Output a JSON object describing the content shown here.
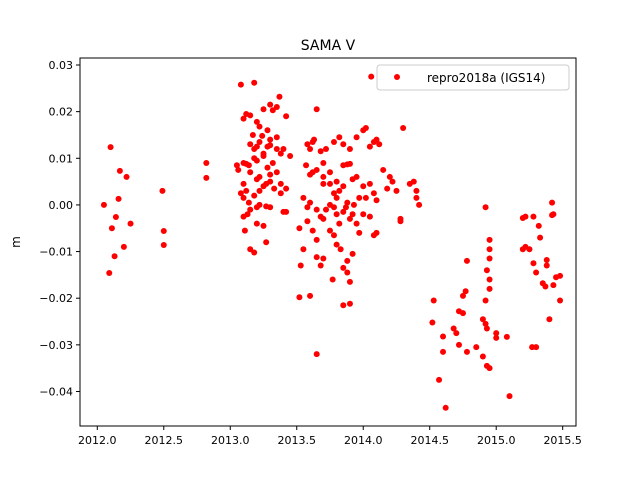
{
  "chart_data": {
    "type": "scatter",
    "title": "SAMA V",
    "xlabel": "",
    "ylabel": "m",
    "xlim": [
      2011.87,
      2015.6
    ],
    "ylim": [
      -0.0474,
      0.0315
    ],
    "xticks": [
      2012.0,
      2012.5,
      2013.0,
      2013.5,
      2014.0,
      2014.5,
      2015.0,
      2015.5
    ],
    "xtick_labels": [
      "2012.0",
      "2012.5",
      "2013.0",
      "2013.5",
      "2014.0",
      "2014.5",
      "2015.0",
      "2015.5"
    ],
    "yticks": [
      -0.04,
      -0.03,
      -0.02,
      -0.01,
      0.0,
      0.01,
      0.02,
      0.03
    ],
    "ytick_labels": [
      "−0.04",
      "−0.03",
      "−0.02",
      "−0.01",
      "0.00",
      "0.01",
      "0.02",
      "0.03"
    ],
    "grid": false,
    "legend_position": "top-right",
    "series": [
      {
        "name": "repro2018a (IGS14)",
        "color": "#ff0000",
        "points": [
          [
            2012.05,
            0.0
          ],
          [
            2012.1,
            0.0124
          ],
          [
            2012.17,
            0.0073
          ],
          [
            2012.22,
            0.006
          ],
          [
            2012.16,
            0.0013
          ],
          [
            2012.14,
            -0.0026
          ],
          [
            2012.11,
            -0.005
          ],
          [
            2012.25,
            -0.004
          ],
          [
            2012.2,
            -0.009
          ],
          [
            2012.13,
            -0.011
          ],
          [
            2012.09,
            -0.0146
          ],
          [
            2012.49,
            0.003
          ],
          [
            2012.5,
            -0.0056
          ],
          [
            2012.5,
            -0.0086
          ],
          [
            2012.82,
            0.009
          ],
          [
            2012.82,
            0.0058
          ],
          [
            2013.08,
            0.0258
          ],
          [
            2013.18,
            0.0262
          ],
          [
            2013.1,
            0.0185
          ],
          [
            2013.12,
            0.0195
          ],
          [
            2013.15,
            0.0192
          ],
          [
            2013.2,
            0.0178
          ],
          [
            2013.22,
            0.0168
          ],
          [
            2013.25,
            0.0205
          ],
          [
            2013.3,
            0.0215
          ],
          [
            2013.32,
            0.0203
          ],
          [
            2013.37,
            0.0232
          ],
          [
            2013.35,
            0.021
          ],
          [
            2013.42,
            0.019
          ],
          [
            2013.28,
            0.016
          ],
          [
            2013.3,
            0.014
          ],
          [
            2013.15,
            0.013
          ],
          [
            2013.18,
            0.012
          ],
          [
            2013.2,
            0.0125
          ],
          [
            2013.22,
            0.0135
          ],
          [
            2013.25,
            0.0105
          ],
          [
            2013.18,
            0.01
          ],
          [
            2013.2,
            0.0095
          ],
          [
            2013.1,
            0.009
          ],
          [
            2013.12,
            0.0088
          ],
          [
            2013.14,
            0.0085
          ],
          [
            2013.25,
            0.011
          ],
          [
            2013.28,
            0.0125
          ],
          [
            2013.3,
            0.0128
          ],
          [
            2013.35,
            0.012
          ],
          [
            2013.38,
            0.011
          ],
          [
            2013.4,
            0.012
          ],
          [
            2013.32,
            0.009
          ],
          [
            2013.28,
            0.008
          ],
          [
            2013.3,
            0.0065
          ],
          [
            2013.22,
            0.006
          ],
          [
            2013.2,
            0.0055
          ],
          [
            2013.15,
            0.007
          ],
          [
            2013.1,
            0.0045
          ],
          [
            2013.12,
            0.003
          ],
          [
            2013.1,
            0.0015
          ],
          [
            2013.14,
            0.0005
          ],
          [
            2013.15,
            -0.001
          ],
          [
            2013.13,
            -0.002
          ],
          [
            2013.18,
            0.002
          ],
          [
            2013.22,
            0.003
          ],
          [
            2013.25,
            0.004
          ],
          [
            2013.27,
            0.0045
          ],
          [
            2013.3,
            0.005
          ],
          [
            2013.33,
            0.0035
          ],
          [
            2013.35,
            0.007
          ],
          [
            2013.38,
            0.0025
          ],
          [
            2013.4,
            -0.0015
          ],
          [
            2013.42,
            -0.0015
          ],
          [
            2013.2,
            -0.0005
          ],
          [
            2013.22,
            0.0
          ],
          [
            2013.27,
            -0.0003
          ],
          [
            2013.1,
            -0.0025
          ],
          [
            2013.11,
            -0.0055
          ],
          [
            2013.15,
            -0.0095
          ],
          [
            2013.18,
            -0.0102
          ],
          [
            2013.2,
            -0.004
          ],
          [
            2013.27,
            -0.008
          ],
          [
            2013.25,
            -0.0045
          ],
          [
            2013.3,
            -0.0005
          ],
          [
            2013.05,
            0.0085
          ],
          [
            2013.08,
            0.0025
          ],
          [
            2013.06,
            0.0075
          ],
          [
            2013.38,
            0.0045
          ],
          [
            2013.42,
            0.0035
          ],
          [
            2013.45,
            0.0105
          ],
          [
            2013.17,
            0.015
          ],
          [
            2013.24,
            0.0148
          ],
          [
            2013.35,
            0.0145
          ],
          [
            2013.65,
            0.0205
          ],
          [
            2013.58,
            0.013
          ],
          [
            2013.6,
            0.012
          ],
          [
            2013.63,
            0.014
          ],
          [
            2013.62,
            0.0135
          ],
          [
            2013.68,
            0.0115
          ],
          [
            2013.7,
            0.009
          ],
          [
            2013.72,
            0.012
          ],
          [
            2013.78,
            0.0135
          ],
          [
            2013.82,
            0.0145
          ],
          [
            2013.85,
            0.013
          ],
          [
            2013.9,
            0.012
          ],
          [
            2013.95,
            0.0145
          ],
          [
            2014.0,
            0.016
          ],
          [
            2014.02,
            0.0165
          ],
          [
            2014.05,
            0.0125
          ],
          [
            2014.08,
            0.0135
          ],
          [
            2014.1,
            0.014
          ],
          [
            2014.12,
            0.013
          ],
          [
            2013.57,
            0.0085
          ],
          [
            2013.6,
            0.0065
          ],
          [
            2013.62,
            0.007
          ],
          [
            2013.65,
            0.0075
          ],
          [
            2013.7,
            0.006
          ],
          [
            2013.75,
            0.0045
          ],
          [
            2013.78,
            0.0025
          ],
          [
            2013.8,
            0.005
          ],
          [
            2013.82,
            0.003
          ],
          [
            2013.85,
            0.0085
          ],
          [
            2013.88,
            0.0087
          ],
          [
            2013.9,
            0.0088
          ],
          [
            2013.92,
            0.0055
          ],
          [
            2013.95,
            0.006
          ],
          [
            2014.0,
            0.004
          ],
          [
            2014.05,
            0.0045
          ],
          [
            2014.08,
            0.0025
          ],
          [
            2014.1,
            0.001
          ],
          [
            2014.15,
            0.0075
          ],
          [
            2014.18,
            0.0035
          ],
          [
            2014.2,
            0.006
          ],
          [
            2014.22,
            0.005
          ],
          [
            2014.25,
            0.003
          ],
          [
            2014.3,
            0.0165
          ],
          [
            2014.35,
            0.0045
          ],
          [
            2014.38,
            0.005
          ],
          [
            2014.4,
            0.0015
          ],
          [
            2014.42,
            0.0
          ],
          [
            2014.4,
            0.003
          ],
          [
            2014.28,
            -0.003
          ],
          [
            2014.28,
            -0.0035
          ],
          [
            2013.55,
            0.0015
          ],
          [
            2013.58,
            -0.0005
          ],
          [
            2013.6,
            0.0005
          ],
          [
            2013.65,
            -0.001
          ],
          [
            2013.68,
            -0.0025
          ],
          [
            2013.7,
            -0.003
          ],
          [
            2013.72,
            -0.001
          ],
          [
            2013.75,
            0.0
          ],
          [
            2013.78,
            -0.0005
          ],
          [
            2013.8,
            -0.002
          ],
          [
            2013.82,
            -0.004
          ],
          [
            2013.85,
            -0.0015
          ],
          [
            2013.87,
            -0.0005
          ],
          [
            2013.9,
            -0.003
          ],
          [
            2013.92,
            -0.002
          ],
          [
            2013.95,
            -0.004
          ],
          [
            2013.97,
            -0.006
          ],
          [
            2014.0,
            -0.002
          ],
          [
            2014.02,
            0.0015
          ],
          [
            2014.05,
            -0.0025
          ],
          [
            2014.08,
            -0.0065
          ],
          [
            2014.1,
            -0.006
          ],
          [
            2013.52,
            -0.005
          ],
          [
            2013.55,
            -0.0095
          ],
          [
            2013.53,
            -0.013
          ],
          [
            2013.52,
            -0.0198
          ],
          [
            2013.6,
            -0.0195
          ],
          [
            2013.65,
            -0.0112
          ],
          [
            2013.7,
            -0.0115
          ],
          [
            2013.68,
            -0.013
          ],
          [
            2013.65,
            -0.0075
          ],
          [
            2013.75,
            -0.0055
          ],
          [
            2013.78,
            -0.0065
          ],
          [
            2013.8,
            -0.0085
          ],
          [
            2013.83,
            -0.0095
          ],
          [
            2013.85,
            -0.0135
          ],
          [
            2013.88,
            -0.0145
          ],
          [
            2013.9,
            -0.0165
          ],
          [
            2013.92,
            -0.0105
          ],
          [
            2013.88,
            -0.012
          ],
          [
            2013.85,
            -0.0215
          ],
          [
            2013.9,
            -0.0212
          ],
          [
            2013.77,
            -0.016
          ],
          [
            2013.65,
            -0.032
          ],
          [
            2013.62,
            -0.0055
          ],
          [
            2013.58,
            -0.0035
          ],
          [
            2013.88,
            0.0005
          ],
          [
            2013.93,
            0.0
          ],
          [
            2013.97,
            0.0015
          ],
          [
            2013.8,
            0.0015
          ],
          [
            2013.7,
            0.0045
          ],
          [
            2013.85,
            0.004
          ],
          [
            2013.75,
            0.007
          ],
          [
            2014.06,
            0.0275
          ],
          [
            2014.52,
            -0.0252
          ],
          [
            2014.53,
            -0.0205
          ],
          [
            2014.57,
            -0.0375
          ],
          [
            2014.6,
            -0.0282
          ],
          [
            2014.6,
            -0.0315
          ],
          [
            2014.62,
            -0.0435
          ],
          [
            2014.68,
            -0.0265
          ],
          [
            2014.7,
            -0.0275
          ],
          [
            2014.72,
            -0.0228
          ],
          [
            2014.75,
            -0.0232
          ],
          [
            2014.72,
            -0.03
          ],
          [
            2014.75,
            -0.0195
          ],
          [
            2014.77,
            -0.0185
          ],
          [
            2014.78,
            -0.012
          ],
          [
            2014.78,
            -0.0315
          ],
          [
            2014.85,
            -0.0305
          ],
          [
            2014.9,
            -0.0325
          ],
          [
            2014.9,
            -0.0245
          ],
          [
            2014.92,
            -0.0255
          ],
          [
            2014.93,
            -0.0265
          ],
          [
            2014.92,
            -0.0205
          ],
          [
            2014.93,
            -0.0345
          ],
          [
            2014.95,
            -0.035
          ],
          [
            2014.92,
            -0.0005
          ],
          [
            2014.95,
            -0.0075
          ],
          [
            2014.95,
            -0.0095
          ],
          [
            2014.95,
            -0.0115
          ],
          [
            2014.93,
            -0.014
          ],
          [
            2014.95,
            -0.016
          ],
          [
            2014.95,
            -0.018
          ],
          [
            2015.0,
            -0.0275
          ],
          [
            2015.0,
            -0.0285
          ],
          [
            2015.08,
            -0.0283
          ],
          [
            2015.1,
            -0.041
          ],
          [
            2015.2,
            -0.0095
          ],
          [
            2015.2,
            -0.0028
          ],
          [
            2015.22,
            -0.0025
          ],
          [
            2015.22,
            -0.009
          ],
          [
            2015.25,
            -0.0095
          ],
          [
            2015.28,
            -0.0125
          ],
          [
            2015.28,
            -0.0025
          ],
          [
            2015.3,
            -0.0305
          ],
          [
            2015.3,
            -0.0145
          ],
          [
            2015.32,
            -0.0045
          ],
          [
            2015.33,
            -0.007
          ],
          [
            2015.35,
            -0.0168
          ],
          [
            2015.37,
            -0.0175
          ],
          [
            2015.38,
            -0.013
          ],
          [
            2015.38,
            -0.0118
          ],
          [
            2015.4,
            -0.0245
          ],
          [
            2015.42,
            0.0005
          ],
          [
            2015.42,
            -0.0022
          ],
          [
            2015.43,
            -0.002
          ],
          [
            2015.45,
            -0.0155
          ],
          [
            2015.43,
            -0.0172
          ],
          [
            2015.48,
            -0.0152
          ],
          [
            2015.48,
            -0.0205
          ],
          [
            2015.27,
            -0.0305
          ]
        ]
      }
    ]
  }
}
